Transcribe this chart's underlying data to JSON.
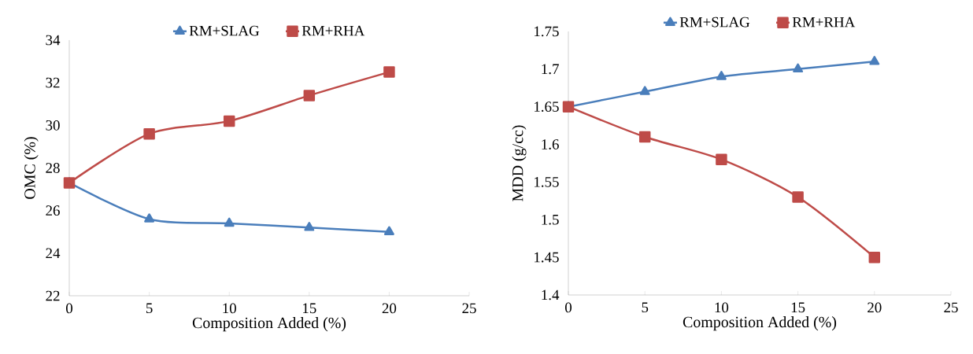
{
  "chart_data": [
    {
      "type": "line",
      "xlabel": "Composition Added (%)",
      "ylabel": "OMC  (%)",
      "legend": "top",
      "xlim": [
        0,
        25
      ],
      "ylim": [
        22,
        34
      ],
      "xticks": [
        0,
        5,
        10,
        15,
        20,
        25
      ],
      "yticks": [
        22,
        24,
        26,
        28,
        30,
        32,
        34
      ],
      "series": [
        {
          "name": "RM+SLAG",
          "color": "#4a7ebb",
          "marker": "triangle",
          "x": [
            0,
            5,
            10,
            15,
            20
          ],
          "values": [
            27.3,
            25.6,
            25.4,
            25.2,
            25.0
          ]
        },
        {
          "name": "RM+RHA",
          "color": "#be4b48",
          "marker": "square",
          "x": [
            0,
            5,
            10,
            15,
            20
          ],
          "values": [
            27.3,
            29.6,
            30.2,
            31.4,
            32.5
          ]
        }
      ]
    },
    {
      "type": "line",
      "xlabel": "Composition Added (%)",
      "ylabel": "MDD (g/cc)",
      "legend": "top",
      "xlim": [
        0,
        25
      ],
      "ylim": [
        1.4,
        1.75
      ],
      "xticks": [
        0,
        5,
        10,
        15,
        20,
        25
      ],
      "yticks": [
        1.4,
        1.45,
        1.5,
        1.55,
        1.6,
        1.65,
        1.7,
        1.75
      ],
      "series": [
        {
          "name": "RM+SLAG",
          "color": "#4a7ebb",
          "marker": "triangle",
          "x": [
            0,
            5,
            10,
            15,
            20
          ],
          "values": [
            1.65,
            1.67,
            1.69,
            1.7,
            1.71
          ]
        },
        {
          "name": "RM+RHA",
          "color": "#be4b48",
          "marker": "square",
          "x": [
            0,
            5,
            10,
            15,
            20
          ],
          "values": [
            1.65,
            1.61,
            1.58,
            1.53,
            1.45
          ]
        }
      ]
    }
  ]
}
